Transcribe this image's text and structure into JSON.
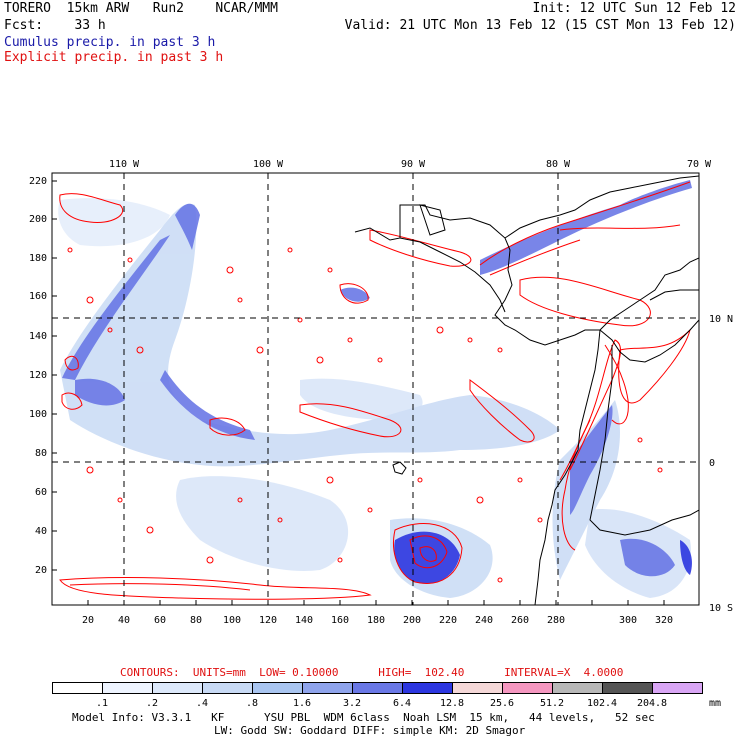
{
  "header": {
    "line1_left": "TORERO  15km ARW   Run2    NCAR/MMM",
    "line1_right": "Init: 12 UTC Sun 12 Feb 12",
    "line2_left": "Fcst:    33 h",
    "line2_right": "Valid: 21 UTC Mon 13 Feb 12 (15 CST Mon 13 Feb 12)",
    "cumulus_label": "Cumulus precip. in past 3 h",
    "explicit_label": "Explicit precip. in past 3 h"
  },
  "map": {
    "top_lon_labels": [
      "110 W",
      "100 W",
      "90 W",
      "80 W",
      "70 W"
    ],
    "right_lat_labels": [
      "10 N",
      "0",
      "10 S"
    ],
    "left_y_labels": [
      "220",
      "200",
      "180",
      "160",
      "140",
      "120",
      "100",
      "80",
      "60",
      "40",
      "20"
    ],
    "bottom_x_labels": [
      "20",
      "40",
      "60",
      "80",
      "100",
      "120",
      "140",
      "160",
      "180",
      "200",
      "220",
      "240",
      "260",
      "280",
      "300",
      "320"
    ],
    "colors": {
      "coast": "#000000",
      "explicit_contour": "#ff0000",
      "grid": "#000000"
    }
  },
  "contour_info": {
    "label": "CONTOURS:  UNITS=mm  LOW= 0.10000      HIGH=  102.40      INTERVAL=X  4.0000"
  },
  "colorbar": {
    "ticks": [
      ".1",
      ".2",
      ".4",
      ".8",
      "1.6",
      "3.2",
      "6.4",
      "12.8",
      "25.6",
      "51.2",
      "102.4",
      "204.8"
    ],
    "units": "mm",
    "colors": [
      "#ffffff",
      "#eef4ff",
      "#dde9fb",
      "#c8daf5",
      "#a9c5f0",
      "#8fa4ec",
      "#6a78e6",
      "#2c36e0",
      "#f5d8d8",
      "#f597c0",
      "#b8b8b8",
      "#555555",
      "#d9a6f5"
    ]
  },
  "footer": {
    "line1": "Model Info: V3.3.1   KF      YSU PBL  WDM 6class  Noah LSM  15 km,   44 levels,   52 sec",
    "line2": "LW: Godd SW: Goddard DIFF: simple KM: 2D Smagor"
  }
}
